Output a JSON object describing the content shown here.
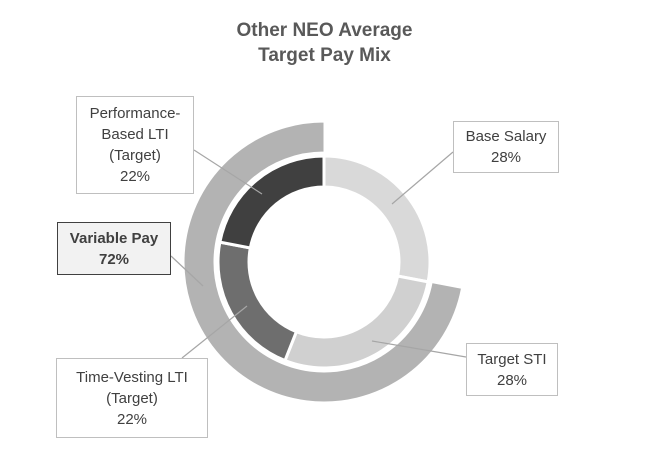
{
  "chart_data": {
    "type": "pie",
    "title_lines": [
      "Other NEO Average",
      "Target Pay Mix"
    ],
    "inner_ring": [
      {
        "label_lines": [
          "Base Salary"
        ],
        "value": 28,
        "value_label": "28%",
        "color": "#d9d9d9"
      },
      {
        "label_lines": [
          "Target STI"
        ],
        "value": 28,
        "value_label": "28%",
        "color": "#d0d0d0"
      },
      {
        "label_lines": [
          "Time-Vesting LTI",
          "(Target)"
        ],
        "value": 22,
        "value_label": "22%",
        "color": "#6e6e6e"
      },
      {
        "label_lines": [
          "Performance-",
          "Based LTI",
          "(Target)"
        ],
        "value": 22,
        "value_label": "22%",
        "color": "#404040"
      }
    ],
    "outer_ring": [
      {
        "label_lines": [
          "Variable Pay"
        ],
        "value": 72,
        "value_label": "72%",
        "color": "#b3b3b3"
      }
    ]
  }
}
